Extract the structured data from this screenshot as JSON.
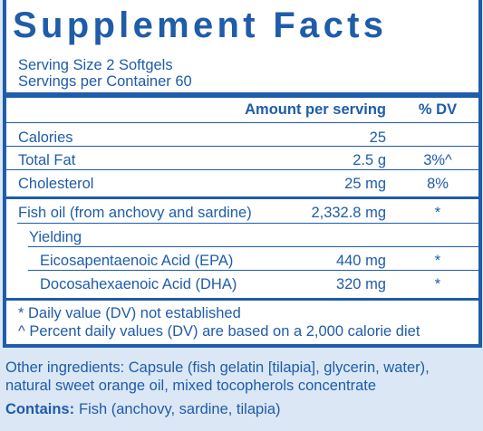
{
  "title": "Supplement Facts",
  "serving_size": "Serving Size 2 Softgels",
  "servings_per_container": "Servings per Container 60",
  "table": {
    "header": {
      "amount": "Amount per serving",
      "dv": "% DV"
    },
    "rows": [
      {
        "name": "Calories",
        "amount": "25"
      },
      {
        "name": "Total Fat",
        "amount": "2.5 g",
        "dv": "3%^"
      },
      {
        "name": "Cholesterol",
        "amount": "25 mg",
        "dv": "8%"
      },
      {
        "name": "Fish oil (from anchovy and sardine)",
        "amount": "2,332.8 mg",
        "dv": "*"
      },
      {
        "name": "Yielding"
      },
      {
        "name": "Eicosapentaenoic Acid (EPA)",
        "amount": "440 mg",
        "dv": "*"
      },
      {
        "name": "Docosahexaenoic Acid (DHA)",
        "amount": "320 mg",
        "dv": "*"
      }
    ]
  },
  "footnotes": [
    "* Daily value (DV) not established",
    "^ Percent daily values (DV) are based on a 2,000 calorie diet"
  ],
  "other_ingredients": [
    "Other ingredients: Capsule (fish gelatin [tilapia], glycerin, water),",
    "natural sweet orange oil, mixed tocopherols concentrate"
  ],
  "contains": {
    "label": "Contains:",
    "text": "Fish (anchovy, sardine, tilapia)"
  }
}
